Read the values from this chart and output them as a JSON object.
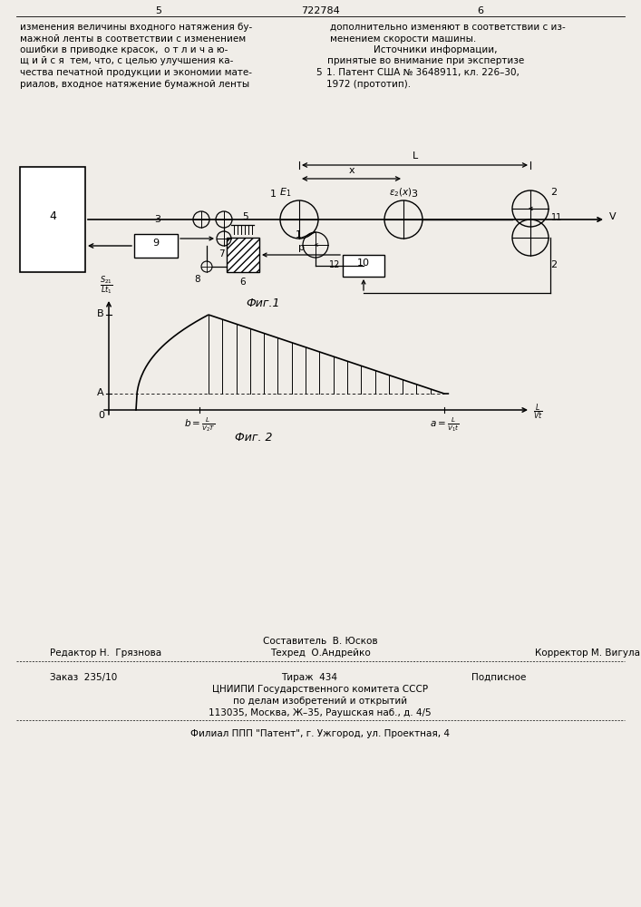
{
  "bg_color": "#f0ede8",
  "page_number_left": "5",
  "page_number_center": "722784",
  "page_number_right": "6",
  "text_left_lines": [
    "изменения величины входного натяжения бу-",
    "мажной ленты в соответствии с изменением",
    "ошибки в приводке красок,  о т л и ч а ю-",
    "щ и й с я  тем, что, с целью улучшения ка-",
    "чества печатной продукции и экономии мате-",
    "риалов, входное натяжение бумажной ленты"
  ],
  "text_right_lines": [
    "дополнительно изменяют в соответствии с из-",
    "менением скорости машины.",
    "Источники информации,",
    "принятые во внимание при экспертизе",
    "1. Патент США № 3648911, кл. 226–30,",
    "1972 (прототип)."
  ],
  "fig1_caption": "Фиг.1",
  "fig2_caption": "Фиг. 2",
  "footer_editor": "Редактор Н.  Грязнова",
  "footer_composer": "Составитель  В. Юсков",
  "footer_corrector": "Корректор М. Вигула",
  "footer_techred": "Техред  О.Андрейко",
  "footer_order": "Заказ  235/10",
  "footer_tirazh": "Тираж  434",
  "footer_podpisnoe": "Подписное",
  "footer_org1": "ЦНИИПИ Государственного комитета СССР",
  "footer_org2": "по делам изобретений и открытий",
  "footer_org3": "113035, Москва, Ж–35, Раушская наб., д. 4/5",
  "footer_filial": "Филиал ППП \"Патент\", г. Ужгород, ул. Проектная, 4"
}
